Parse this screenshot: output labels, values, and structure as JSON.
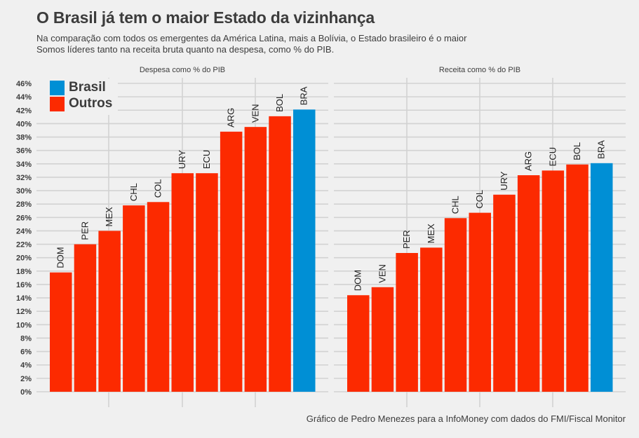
{
  "header": {
    "title": "O Brasil já tem o maior Estado da vizinhança",
    "subtitle_line1": "Na comparação com todos os emergentes da América Latina, mais a Bolívia, o Estado brasileiro é o maior",
    "subtitle_line2": "Somos líderes tanto na receita bruta quanto na despesa, como % do PIB."
  },
  "caption": "Gráfico de Pedro Menezes para a InfoMoney com dados do FMI/Fiscal Monitor",
  "legend": {
    "items": [
      {
        "label": "Brasil",
        "color": "#008fd5"
      },
      {
        "label": "Outros",
        "color": "#fc2a00"
      }
    ]
  },
  "colors": {
    "background": "#f0f0f0",
    "grid": "#d2d2d2",
    "brasil": "#008fd5",
    "outros": "#fc2a00",
    "text": "#3c3c3c"
  },
  "chart_data": [
    {
      "type": "bar",
      "title": "Despesa como % do PIB",
      "xlabel": "",
      "ylabel": "",
      "ylim": [
        0,
        46
      ],
      "yticks": [
        "0%",
        "2%",
        "4%",
        "6%",
        "8%",
        "10%",
        "12%",
        "14%",
        "16%",
        "18%",
        "20%",
        "22%",
        "24%",
        "26%",
        "28%",
        "30%",
        "32%",
        "34%",
        "36%",
        "38%",
        "40%",
        "42%",
        "44%",
        "46%"
      ],
      "grid": true,
      "legend_position": "top-left",
      "categories": [
        "DOM",
        "PER",
        "MEX",
        "CHL",
        "COL",
        "URY",
        "ECU",
        "ARG",
        "VEN",
        "BOL",
        "BRA"
      ],
      "values": [
        17.8,
        22.0,
        24.0,
        27.8,
        28.3,
        32.6,
        32.6,
        38.8,
        39.5,
        41.1,
        42.1
      ],
      "groups": [
        "Outros",
        "Outros",
        "Outros",
        "Outros",
        "Outros",
        "Outros",
        "Outros",
        "Outros",
        "Outros",
        "Outros",
        "Brasil"
      ]
    },
    {
      "type": "bar",
      "title": "Receita como % do PIB",
      "xlabel": "",
      "ylabel": "",
      "ylim": [
        0,
        46
      ],
      "grid": true,
      "categories": [
        "DOM",
        "VEN",
        "PER",
        "MEX",
        "CHL",
        "COL",
        "URY",
        "ARG",
        "ECU",
        "BOL",
        "BRA"
      ],
      "values": [
        14.4,
        15.6,
        20.7,
        21.5,
        25.9,
        26.7,
        29.4,
        32.3,
        33.0,
        33.9,
        34.1
      ],
      "groups": [
        "Outros",
        "Outros",
        "Outros",
        "Outros",
        "Outros",
        "Outros",
        "Outros",
        "Outros",
        "Outros",
        "Outros",
        "Brasil"
      ]
    }
  ]
}
